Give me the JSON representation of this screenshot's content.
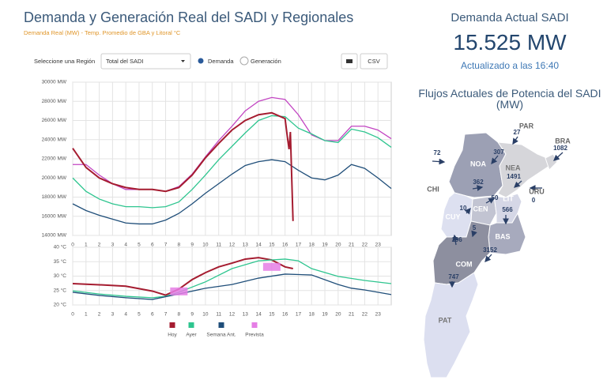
{
  "header": {
    "title": "Demanda y Generación Real del SADI y Regionales",
    "subtitle": "Demanda Real (MW) - Temp. Promedio de GBA y Litoral °C"
  },
  "controls": {
    "region_label": "Seleccione una Región",
    "region_value": "Total del SADI",
    "options": [
      "Demanda",
      "Generación"
    ],
    "export": "CSV"
  },
  "chart_data": [
    {
      "type": "line",
      "xlim": [
        0,
        24
      ],
      "xticks": [
        0,
        1,
        2,
        3,
        4,
        5,
        6,
        7,
        8,
        9,
        10,
        11,
        12,
        13,
        14,
        15,
        16,
        17,
        18,
        19,
        20,
        21,
        22,
        23
      ],
      "ylim": [
        14000,
        30000
      ],
      "yticks": [
        {
          "value": 14000,
          "label": "14000 MW"
        },
        {
          "value": 16000,
          "label": "16000 MW"
        },
        {
          "value": 18000,
          "label": "18000 MW"
        },
        {
          "value": 20000,
          "label": "20000 MW"
        },
        {
          "value": 22000,
          "label": "22000 MW"
        },
        {
          "value": 24000,
          "label": "24000 MW"
        },
        {
          "value": 26000,
          "label": "26000 MW"
        },
        {
          "value": 28000,
          "label": "28000 MW"
        },
        {
          "value": 30000,
          "label": "30000 MW"
        }
      ],
      "grid": true,
      "series": [
        {
          "color": "#c245c2",
          "x": [
            0,
            1,
            2,
            3,
            4,
            5,
            6,
            7,
            8,
            9,
            10,
            11,
            12,
            13,
            14,
            15,
            16,
            17,
            18,
            19,
            20,
            21,
            22,
            23,
            24
          ],
          "values": [
            21400,
            21400,
            20300,
            19400,
            18800,
            18800,
            18800,
            18600,
            19100,
            20400,
            22200,
            23900,
            25400,
            27000,
            28000,
            28400,
            28200,
            26600,
            24500,
            23900,
            23900,
            25400,
            25400,
            25000,
            24100
          ]
        },
        {
          "color": "#2ec58f",
          "x": [
            0,
            1,
            2,
            3,
            4,
            5,
            6,
            7,
            8,
            9,
            10,
            11,
            12,
            13,
            14,
            15,
            16,
            17,
            18,
            19,
            20,
            21,
            22,
            23,
            24
          ],
          "values": [
            20000,
            18600,
            17800,
            17300,
            17000,
            17000,
            16900,
            17000,
            17500,
            18800,
            20300,
            21900,
            23300,
            24700,
            26000,
            26500,
            26400,
            25200,
            24600,
            23900,
            23700,
            25100,
            24800,
            24200,
            23200
          ]
        },
        {
          "color": "#1f4e79",
          "x": [
            0,
            1,
            2,
            3,
            4,
            5,
            6,
            7,
            8,
            9,
            10,
            11,
            12,
            13,
            14,
            15,
            16,
            17,
            18,
            19,
            20,
            21,
            22,
            23,
            24
          ],
          "values": [
            17300,
            16600,
            16100,
            15700,
            15300,
            15200,
            15200,
            15600,
            16300,
            17300,
            18400,
            19400,
            20400,
            21300,
            21700,
            21900,
            21700,
            20800,
            20000,
            19800,
            20300,
            21400,
            21000,
            20000,
            18900
          ]
        },
        {
          "color": "#a51c30",
          "width": 2,
          "x": [
            0,
            1,
            2,
            3,
            4,
            5,
            6,
            7,
            8,
            9,
            10,
            11,
            12,
            13,
            14,
            15,
            16,
            16.2,
            16.3,
            16.4,
            16.6
          ],
          "values": [
            23100,
            21100,
            20000,
            19400,
            19000,
            18800,
            18800,
            18600,
            19000,
            20300,
            22100,
            23600,
            25000,
            26000,
            26600,
            26800,
            26200,
            24000,
            23000,
            24800,
            15500
          ]
        }
      ]
    },
    {
      "type": "line",
      "xlim": [
        0,
        24
      ],
      "xticks": [
        0,
        1,
        2,
        3,
        4,
        5,
        6,
        7,
        8,
        9,
        10,
        11,
        12,
        13,
        14,
        15,
        16,
        17,
        18,
        19,
        20,
        21,
        22,
        23
      ],
      "ylim": [
        20,
        40
      ],
      "yticks": [
        {
          "value": 20,
          "label": "20 °C"
        },
        {
          "value": 25,
          "label": "25 °C"
        },
        {
          "value": 30,
          "label": "30 °C"
        },
        {
          "value": 35,
          "label": "35 °C"
        },
        {
          "value": 40,
          "label": "40 °C"
        }
      ],
      "grid": true,
      "series": [
        {
          "name": "Hoy",
          "color": "#a51c30",
          "width": 2,
          "x": [
            0,
            2,
            4,
            6,
            7,
            8,
            9,
            10,
            11,
            12,
            13,
            14,
            15,
            16,
            16.6
          ],
          "values": [
            27.4,
            27,
            26.5,
            24.8,
            23.4,
            25.5,
            28.8,
            31.2,
            33.2,
            34.5,
            35.9,
            36.4,
            35.6,
            33.2,
            32.6
          ]
        },
        {
          "name": "Ayer",
          "color": "#2ec58f",
          "x": [
            0,
            2,
            4,
            6,
            7,
            8,
            10,
            12,
            14,
            16,
            17,
            18,
            20,
            22,
            24
          ],
          "values": [
            24.9,
            23.8,
            23,
            22.5,
            23,
            24.4,
            28,
            32.6,
            35.3,
            35.9,
            35.3,
            32.6,
            29.9,
            28.5,
            27.4
          ]
        },
        {
          "name": "Semana Ant.",
          "color": "#1f4e79",
          "x": [
            0,
            2,
            4,
            6,
            8,
            10,
            12,
            14,
            16,
            18,
            20,
            21,
            22,
            24
          ],
          "values": [
            24.4,
            23.3,
            22.5,
            21.9,
            23.8,
            25.8,
            27.1,
            29.3,
            30.7,
            30.4,
            27.1,
            25.8,
            25.2,
            23.6
          ]
        },
        {
          "name": "Prevista",
          "type": "scatter",
          "color": "#e57ee5",
          "x": [
            8,
            15
          ],
          "values": [
            24.7,
            33.2
          ]
        }
      ]
    }
  ],
  "summary": {
    "title": "Demanda Actual SADI",
    "value": "15.525 MW",
    "updated": "Actualizado a las 16:40",
    "flows_title": "Flujos Actuales de Potencia del SADI (MW)"
  },
  "map": {
    "regions": [
      "NOA",
      "NEA",
      "CUY",
      "CEN",
      "LIT",
      "BAS",
      "COM",
      "PAT"
    ],
    "neighbors": [
      "PAR",
      "BRA",
      "URU",
      "CHI"
    ],
    "flows": [
      27,
      1082,
      0,
      72,
      307,
      1491,
      362,
      10,
      50,
      566,
      5,
      196,
      3152,
      747
    ]
  }
}
